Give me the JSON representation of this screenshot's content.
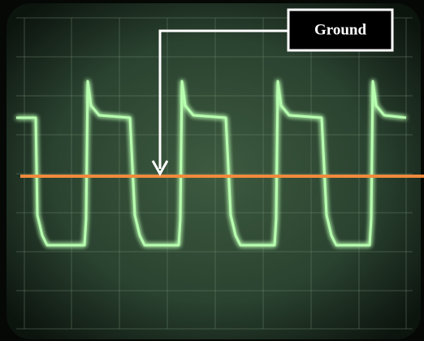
{
  "annotation": {
    "label": "Ground"
  }
}
